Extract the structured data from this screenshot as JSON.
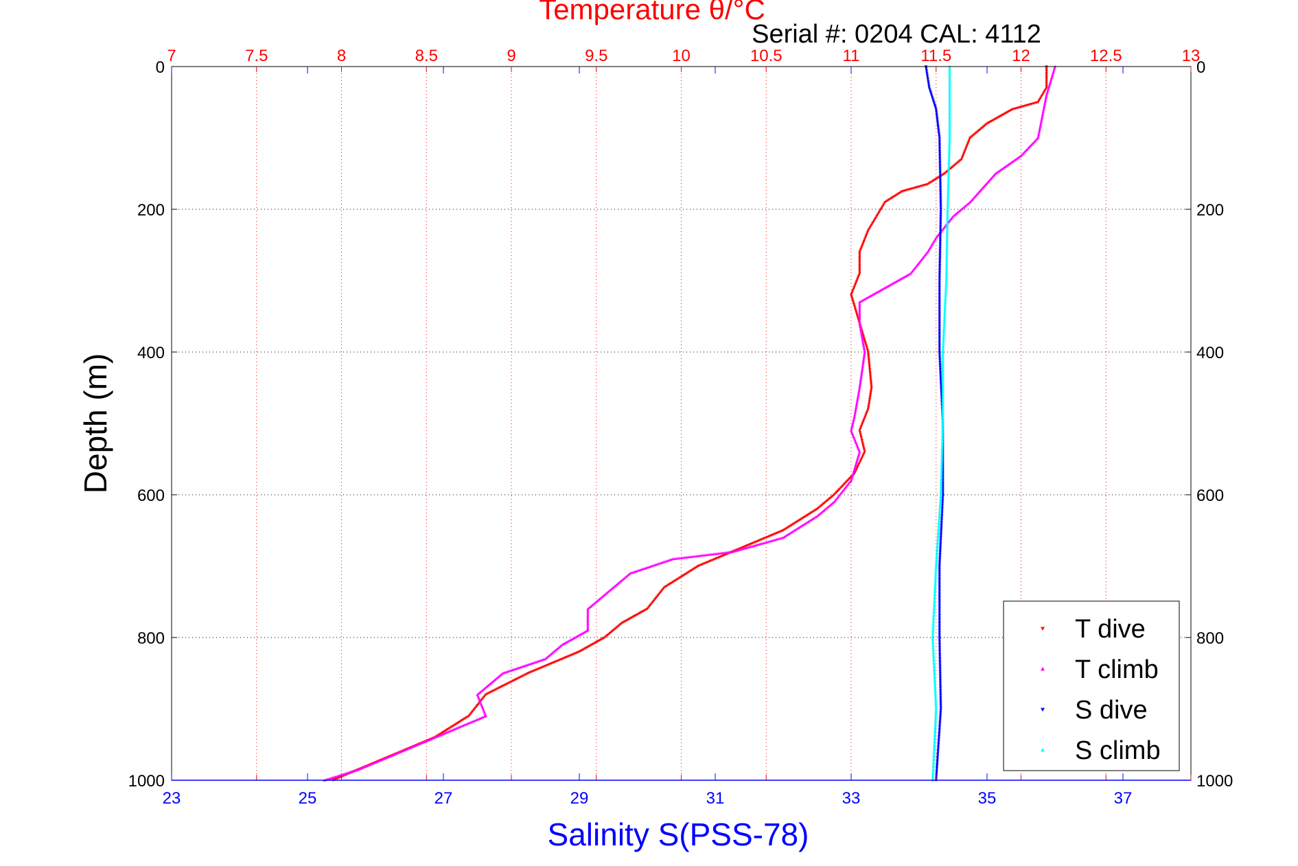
{
  "chart_data": {
    "type": "scatter",
    "title": "Temperature θ/°C",
    "subtitle": "Serial #: 0204  CAL: 4112",
    "ylabel": "Depth (m)",
    "xlabel_bottom": "Salinity S(PSS-78)",
    "xlabel_top": "Temperature θ/°C",
    "y_axis": {
      "range": [
        0,
        1000
      ],
      "reversed": true,
      "ticks": [
        "0",
        "200",
        "400",
        "600",
        "800",
        "1000"
      ]
    },
    "x_top_axis": {
      "quantity": "temperature",
      "range": [
        7,
        13
      ],
      "ticks": [
        "7",
        "7.5",
        "8",
        "8.5",
        "9",
        "9.5",
        "10",
        "10.5",
        "11",
        "11.5",
        "12",
        "12.5",
        "13"
      ]
    },
    "x_bottom_axis": {
      "quantity": "salinity",
      "range": [
        23,
        38
      ],
      "ticks": [
        "23",
        "25",
        "27",
        "29",
        "31",
        "33",
        "35",
        "37"
      ]
    },
    "grid": "dotted",
    "legend_position": "bottom-right",
    "colors": {
      "temperature_axis": "#ff0000",
      "salinity_axis": "#0000ff",
      "t_dive": "#ff0000",
      "t_climb": "#ff00ff",
      "s_dive": "#0000ff",
      "s_climb": "#00ffff"
    },
    "series": [
      {
        "name": "T dive",
        "axis": "temperature",
        "marker": "triangle-down",
        "points": [
          [
            12.15,
            0
          ],
          [
            12.15,
            30
          ],
          [
            12.1,
            50
          ],
          [
            11.95,
            60
          ],
          [
            11.8,
            80
          ],
          [
            11.7,
            100
          ],
          [
            11.65,
            130
          ],
          [
            11.55,
            150
          ],
          [
            11.45,
            165
          ],
          [
            11.3,
            175
          ],
          [
            11.2,
            190
          ],
          [
            11.15,
            210
          ],
          [
            11.1,
            230
          ],
          [
            11.05,
            260
          ],
          [
            11.05,
            290
          ],
          [
            11.0,
            320
          ],
          [
            11.05,
            360
          ],
          [
            11.1,
            400
          ],
          [
            11.12,
            450
          ],
          [
            11.1,
            480
          ],
          [
            11.05,
            510
          ],
          [
            11.08,
            540
          ],
          [
            11.02,
            570
          ],
          [
            10.9,
            600
          ],
          [
            10.8,
            620
          ],
          [
            10.6,
            650
          ],
          [
            10.3,
            680
          ],
          [
            10.1,
            700
          ],
          [
            9.9,
            730
          ],
          [
            9.8,
            760
          ],
          [
            9.65,
            780
          ],
          [
            9.55,
            800
          ],
          [
            9.4,
            820
          ],
          [
            9.1,
            850
          ],
          [
            8.85,
            880
          ],
          [
            8.75,
            910
          ],
          [
            8.55,
            940
          ],
          [
            8.35,
            960
          ],
          [
            8.1,
            985
          ],
          [
            7.95,
            1000
          ]
        ]
      },
      {
        "name": "T climb",
        "axis": "temperature",
        "marker": "triangle-up",
        "points": [
          [
            12.2,
            0
          ],
          [
            12.15,
            40
          ],
          [
            12.1,
            100
          ],
          [
            12.0,
            125
          ],
          [
            11.85,
            150
          ],
          [
            11.7,
            190
          ],
          [
            11.6,
            210
          ],
          [
            11.5,
            240
          ],
          [
            11.45,
            260
          ],
          [
            11.35,
            290
          ],
          [
            11.2,
            310
          ],
          [
            11.05,
            330
          ],
          [
            11.05,
            360
          ],
          [
            11.08,
            400
          ],
          [
            11.05,
            450
          ],
          [
            11.02,
            490
          ],
          [
            11.0,
            510
          ],
          [
            11.05,
            540
          ],
          [
            11.0,
            580
          ],
          [
            10.9,
            610
          ],
          [
            10.8,
            630
          ],
          [
            10.6,
            660
          ],
          [
            10.3,
            680
          ],
          [
            9.95,
            690
          ],
          [
            9.7,
            710
          ],
          [
            9.55,
            740
          ],
          [
            9.45,
            760
          ],
          [
            9.45,
            790
          ],
          [
            9.3,
            810
          ],
          [
            9.2,
            830
          ],
          [
            8.95,
            850
          ],
          [
            8.8,
            880
          ],
          [
            8.85,
            910
          ],
          [
            8.55,
            940
          ],
          [
            8.35,
            960
          ],
          [
            8.1,
            985
          ],
          [
            7.9,
            1000
          ]
        ]
      },
      {
        "name": "S dive",
        "axis": "salinity",
        "marker": "triangle-down",
        "points": [
          [
            34.1,
            0
          ],
          [
            34.15,
            30
          ],
          [
            34.25,
            60
          ],
          [
            34.3,
            100
          ],
          [
            34.32,
            200
          ],
          [
            34.3,
            300
          ],
          [
            34.3,
            400
          ],
          [
            34.35,
            500
          ],
          [
            34.35,
            600
          ],
          [
            34.3,
            700
          ],
          [
            34.3,
            800
          ],
          [
            34.32,
            900
          ],
          [
            34.25,
            1000
          ]
        ]
      },
      {
        "name": "S climb",
        "axis": "salinity",
        "marker": "triangle-up",
        "points": [
          [
            34.45,
            0
          ],
          [
            34.45,
            100
          ],
          [
            34.42,
            200
          ],
          [
            34.4,
            300
          ],
          [
            34.35,
            400
          ],
          [
            34.35,
            500
          ],
          [
            34.32,
            600
          ],
          [
            34.25,
            700
          ],
          [
            34.2,
            800
          ],
          [
            34.25,
            900
          ],
          [
            34.2,
            1000
          ]
        ]
      }
    ],
    "legend": [
      "T dive",
      "T climb",
      "S dive",
      "S climb"
    ]
  }
}
